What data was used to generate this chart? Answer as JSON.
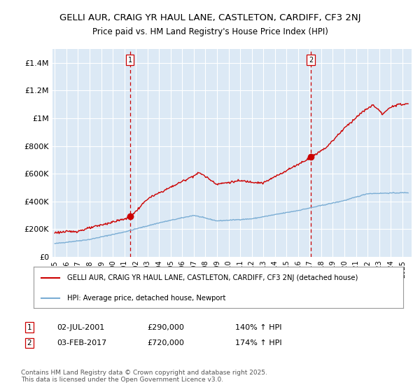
{
  "title_line1": "GELLI AUR, CRAIG YR HAUL LANE, CASTLETON, CARDIFF, CF3 2NJ",
  "title_line2": "Price paid vs. HM Land Registry's House Price Index (HPI)",
  "legend_label1": "GELLI AUR, CRAIG YR HAUL LANE, CASTLETON, CARDIFF, CF3 2NJ (detached house)",
  "legend_label2": "HPI: Average price, detached house, Newport",
  "annotation1_date": "02-JUL-2001",
  "annotation1_price": "£290,000",
  "annotation1_hpi": "140% ↑ HPI",
  "annotation2_date": "03-FEB-2017",
  "annotation2_price": "£720,000",
  "annotation2_hpi": "174% ↑ HPI",
  "footer": "Contains HM Land Registry data © Crown copyright and database right 2025.\nThis data is licensed under the Open Government Licence v3.0.",
  "line1_color": "#cc0000",
  "line2_color": "#7aadd4",
  "bg_color": "#dce9f5",
  "grid_color": "#ffffff",
  "vline_color": "#cc0000",
  "sale1_x": 2001.5,
  "sale1_y": 290000,
  "sale2_x": 2017.1,
  "sale2_y": 720000,
  "ylim": [
    0,
    1500000
  ],
  "xlim_start": 1994.8,
  "xlim_end": 2025.8
}
